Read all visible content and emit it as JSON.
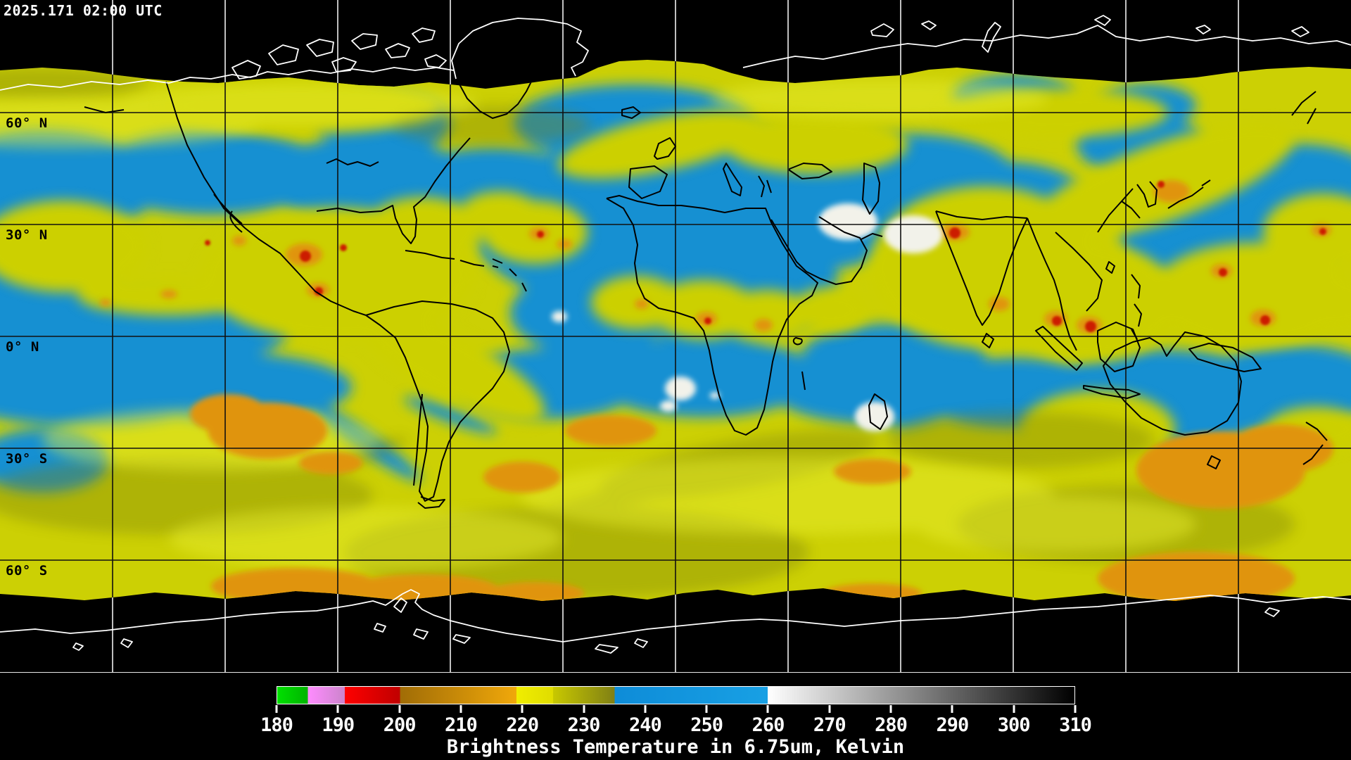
{
  "window": {
    "timestamp": "2025.171 02:00 UTC"
  },
  "map": {
    "latitude_labels": [
      {
        "text": "60° N"
      },
      {
        "text": "30° N"
      },
      {
        "text": "0° N"
      },
      {
        "text": "30° S"
      },
      {
        "text": "60° S"
      }
    ],
    "colors": {
      "background": "#000000",
      "moist_cloud_yellow": "#ccd004",
      "dry_air_blue": "#1590d2",
      "cold_cloud_orange": "#e09410",
      "very_cold_cloud_red": "#cc1e04",
      "warm_surface_white": "#f2f2ea",
      "coastline_over_data": "#000000",
      "coastline_over_nodata": "#ffffff",
      "graticule_over_data": "#101010",
      "graticule_over_nodata": "#f0f0f0"
    }
  },
  "colorbar": {
    "title": "Brightness Temperature in 6.75um, Kelvin",
    "range": {
      "min": 180,
      "max": 310
    },
    "tick_labels": [
      "180",
      "190",
      "200",
      "210",
      "220",
      "230",
      "240",
      "250",
      "260",
      "270",
      "280",
      "290",
      "300",
      "310"
    ],
    "segments": [
      {
        "from": 180,
        "to": 185,
        "color_start": "#00e000",
        "color_end": "#00b400"
      },
      {
        "from": 185,
        "to": 191,
        "color_start": "#ff8cff",
        "color_end": "#cc84cc"
      },
      {
        "from": 191,
        "to": 200,
        "color_start": "#ff0000",
        "color_end": "#c00000"
      },
      {
        "from": 200,
        "to": 219,
        "color_start": "#a06c06",
        "color_end": "#f0a80a"
      },
      {
        "from": 219,
        "to": 225,
        "color_start": "#f0ee00",
        "color_end": "#e0dc00"
      },
      {
        "from": 225,
        "to": 235,
        "color_start": "#c8c800",
        "color_end": "#808014"
      },
      {
        "from": 235,
        "to": 260,
        "color_start": "#0e8cd8",
        "color_end": "#18a0e4"
      },
      {
        "from": 260,
        "to": 310,
        "color_start": "#ffffff",
        "color_end": "#000000"
      }
    ]
  }
}
